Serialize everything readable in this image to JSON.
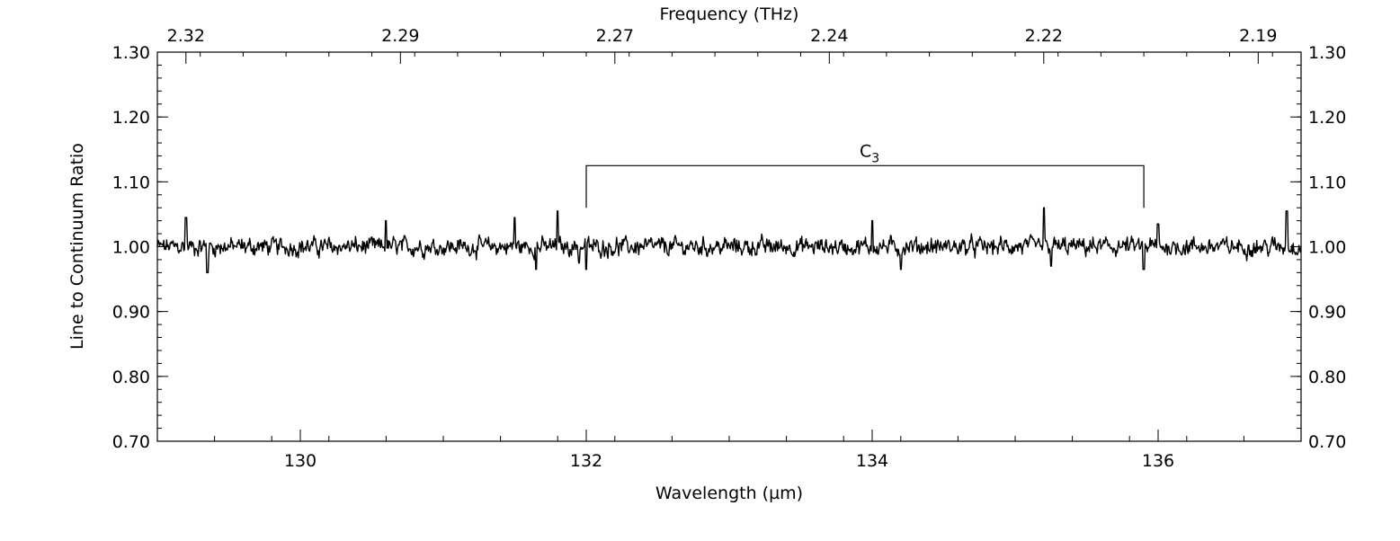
{
  "chart_data": {
    "type": "line",
    "xlabel": "Wavelength (µm)",
    "ylabel": "Line to Continuum Ratio",
    "top_xlabel": "Frequency (THz)",
    "xlim": [
      129.0,
      137.0
    ],
    "ylim": [
      0.7,
      1.3
    ],
    "x_ticks": [
      130,
      132,
      134,
      136
    ],
    "x_tick_labels": [
      "130",
      "132",
      "134",
      "136"
    ],
    "y_ticks": [
      0.7,
      0.8,
      0.9,
      1.0,
      1.1,
      1.2,
      1.3
    ],
    "y_tick_labels": [
      "0.70",
      "0.80",
      "0.90",
      "1.00",
      "1.10",
      "1.20",
      "1.30"
    ],
    "top_ticks": [
      {
        "wavelength": 129.2,
        "label": "2.32"
      },
      {
        "wavelength": 130.7,
        "label": "2.29"
      },
      {
        "wavelength": 132.2,
        "label": "2.27"
      },
      {
        "wavelength": 133.7,
        "label": "2.24"
      },
      {
        "wavelength": 135.2,
        "label": "2.22"
      },
      {
        "wavelength": 136.7,
        "label": "2.19"
      }
    ],
    "grid": false,
    "annotation": {
      "label": "C",
      "subscript": "3",
      "x_start": 132.0,
      "x_end": 135.9,
      "y": 1.125,
      "y_bottom": 1.06
    },
    "series": [
      {
        "baseline": 1.0,
        "noise_amplitude": 0.02,
        "n_points": 1600,
        "spikes": [
          {
            "x": 129.2,
            "y": 1.045
          },
          {
            "x": 129.35,
            "y": 0.96
          },
          {
            "x": 130.6,
            "y": 1.04
          },
          {
            "x": 131.5,
            "y": 1.045
          },
          {
            "x": 131.65,
            "y": 0.965
          },
          {
            "x": 131.8,
            "y": 1.055
          },
          {
            "x": 131.95,
            "y": 0.975
          },
          {
            "x": 132.0,
            "y": 0.965
          },
          {
            "x": 134.0,
            "y": 1.04
          },
          {
            "x": 134.2,
            "y": 0.965
          },
          {
            "x": 135.2,
            "y": 1.06
          },
          {
            "x": 135.25,
            "y": 0.97
          },
          {
            "x": 135.9,
            "y": 0.965
          },
          {
            "x": 136.0,
            "y": 1.035
          },
          {
            "x": 136.9,
            "y": 1.055
          }
        ]
      }
    ]
  }
}
